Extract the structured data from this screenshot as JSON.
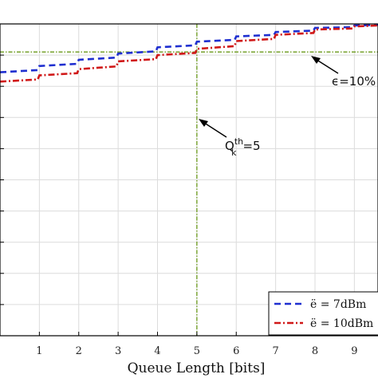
{
  "chart_data": {
    "type": "line",
    "xlabel": "Queue Length [bits]",
    "xticks": [
      1,
      2,
      3,
      4,
      5,
      6,
      7,
      8,
      9
    ],
    "xlim": [
      0,
      9.6
    ],
    "ylim": [
      0,
      1.0
    ],
    "grid": true,
    "legend_position": "bottom-right",
    "series": [
      {
        "name": "ë = 7dBm",
        "color": "#1f2fd0",
        "style": "dashed",
        "x": [
          0,
          1,
          2,
          3,
          4,
          5,
          6,
          7,
          8,
          9,
          9.6
        ],
        "y": [
          0.845,
          0.865,
          0.885,
          0.905,
          0.925,
          0.943,
          0.96,
          0.974,
          0.987,
          0.995,
          1.0
        ]
      },
      {
        "name": "ë = 10dBm",
        "color": "#d01818",
        "style": "dashdot",
        "x": [
          0,
          1,
          2,
          3,
          4,
          5,
          6,
          7,
          8,
          9,
          9.6
        ],
        "y": [
          0.815,
          0.835,
          0.855,
          0.88,
          0.9,
          0.92,
          0.945,
          0.965,
          0.982,
          0.992,
          1.0
        ]
      }
    ],
    "threshold": {
      "y": 0.91,
      "color": "#6a9a1a"
    },
    "vline": {
      "x": 5,
      "color": "#6a9a1a"
    },
    "annotations": {
      "epsilon": "ϵ=10%",
      "queue_q": "Q",
      "queue_sup": "th",
      "queue_sub": "k",
      "queue_val": "=5"
    },
    "legend": [
      "ë = 7dBm",
      "ë = 10dBm"
    ]
  }
}
